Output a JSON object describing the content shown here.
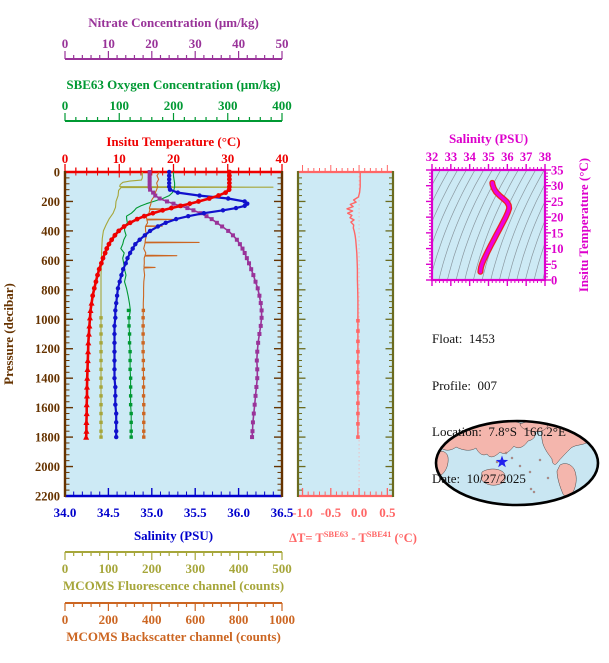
{
  "figure": {
    "plot_bg": "#cdeaf5",
    "info": {
      "lines": [
        "Float:  1453",
        "Profile:  007",
        "Location:  7.8°S  166.2°E",
        "Date:  10/27/2025"
      ]
    },
    "dt_label": {
      "prefix": "ΔT= T",
      "sup1": "SBE63",
      "mid": " - T",
      "sup2": "SBE41",
      "suffix": " (°C)"
    },
    "map": {
      "ocean": "#c9e6f2",
      "land": "#f4b6ad",
      "coast": "#222222",
      "outline": "#000000",
      "marker": "star",
      "marker_color": "#2222ee"
    }
  },
  "chart_data": [
    {
      "type": "line",
      "id": "profiles",
      "y_axis": {
        "title": "Pressure (decibar)",
        "color": "#663300",
        "min": 0,
        "max": 2200,
        "ticks": [
          0,
          200,
          400,
          600,
          800,
          1000,
          1200,
          1400,
          1600,
          1800,
          2000,
          2200
        ],
        "minor": 40
      },
      "axes": {
        "nitrate": {
          "title": "Nitrate Concentration (μm/kg)",
          "color": "#993399",
          "min": 0,
          "max": 50,
          "ticks": [
            0,
            10,
            20,
            30,
            40,
            50
          ],
          "minor": 2,
          "decimals": 0
        },
        "oxygen": {
          "title": "SBE63 Oxygen Concentration (μm/kg)",
          "color": "#009933",
          "min": 0,
          "max": 400,
          "ticks": [
            0,
            100,
            200,
            300,
            400
          ],
          "minor": 20,
          "decimals": 0
        },
        "temperature": {
          "title": "Insitu Temperature (°C)",
          "color": "#ee0000",
          "min": 0,
          "max": 40,
          "ticks": [
            0,
            10,
            20,
            30,
            40
          ],
          "minor": 2,
          "decimals": 0
        },
        "salinity": {
          "title": "Salinity (PSU)",
          "color": "#0000cc",
          "min": 34.0,
          "max": 36.5,
          "ticks": [
            34.0,
            34.5,
            35.0,
            35.5,
            36.0,
            36.5
          ],
          "minor": 0.1,
          "decimals": 1
        },
        "fluorescence": {
          "title": "MCOMS Fluorescence channel (counts)",
          "color": "#a6a63a",
          "min": 0,
          "max": 500,
          "ticks": [
            0,
            100,
            200,
            300,
            400,
            500
          ],
          "minor": 20,
          "decimals": 0
        },
        "backscatter": {
          "title": "MCOMS Backscatter channel (counts)",
          "color": "#cc6622",
          "min": 0,
          "max": 1000,
          "ticks": [
            0,
            200,
            400,
            600,
            800,
            1000
          ],
          "minor": 40,
          "decimals": 0
        }
      },
      "pressures": [
        0,
        25,
        50,
        75,
        100,
        120,
        140,
        160,
        180,
        200,
        215,
        230,
        245,
        260,
        280,
        300,
        320,
        345,
        370,
        400,
        430,
        460,
        490,
        520,
        550,
        585,
        620,
        660,
        700,
        745,
        790,
        840,
        890,
        940,
        990,
        1045,
        1100,
        1160,
        1220,
        1280,
        1340,
        1400,
        1460,
        1520,
        1580,
        1640,
        1700,
        1760,
        1800
      ],
      "series": [
        {
          "name": "fluorescence",
          "axis": "fluorescence",
          "color": "#a6a63a",
          "width": 1.1,
          "marker": "square",
          "marker_from": 940,
          "marker_size": 3.4,
          "pressure": [
            0,
            40,
            55,
            62,
            70,
            85,
            97,
            100,
            103,
            106,
            125,
            160,
            200,
            240,
            280,
            320,
            360,
            400,
            450,
            500,
            560,
            620,
            700,
            790,
            890,
            990,
            1045,
            1100,
            1160,
            1220,
            1280,
            1340,
            1400,
            1460,
            1520,
            1580,
            1640,
            1700,
            1760,
            1800
          ],
          "values": [
            178,
            178,
            176,
            150,
            133,
            128,
            127,
            127,
            478,
            127,
            123,
            121,
            119,
            116,
            110,
            102,
            94,
            89,
            86,
            85,
            84,
            84,
            83,
            83,
            83,
            83,
            83,
            83,
            83,
            83,
            83,
            83,
            83,
            83,
            83,
            83,
            83,
            83,
            83,
            83
          ],
          "jitter": {
            "amp": 2,
            "from": 60,
            "to": 420
          }
        },
        {
          "name": "oxygen",
          "axis": "oxygen",
          "color": "#009933",
          "width": 1.1,
          "marker": "square",
          "marker_from": 940,
          "marker_size": 3.4,
          "values": [
            200,
            200,
            201,
            202,
            202,
            201,
            198,
            192,
            180,
            163,
            150,
            140,
            132,
            126,
            121,
            117,
            115,
            113,
            112,
            111,
            110,
            108,
            107,
            106,
            106,
            107,
            108,
            110,
            111,
            113,
            114,
            115,
            116,
            117,
            118,
            118,
            119,
            119,
            120,
            120,
            120,
            121,
            121,
            121,
            121,
            122,
            122,
            122,
            122
          ],
          "jitter": {
            "amp": 4,
            "from": 230,
            "to": 950
          }
        },
        {
          "name": "backscatter",
          "axis": "backscatter",
          "color": "#cc6622",
          "width": 1.1,
          "marker": "square",
          "marker_from": 940,
          "marker_size": 3.4,
          "values": [
            432,
            426,
            430,
            423,
            428,
            420,
            415,
            411,
            407,
            402,
            397,
            393,
            390,
            387,
            384,
            381,
            379,
            377,
            375,
            373,
            371,
            370,
            369,
            368,
            367,
            366,
            365,
            364,
            364,
            363,
            362,
            362,
            361,
            361,
            360,
            360,
            360,
            360,
            360,
            361,
            361,
            362,
            362,
            362,
            363,
            363,
            363,
            363,
            363
          ],
          "jitter": {
            "amp": 7,
            "from": 0,
            "to": 700
          },
          "spikes": [
            [
              252,
              468
            ],
            [
              322,
              502
            ],
            [
              368,
              448
            ],
            [
              478,
              618
            ],
            [
              568,
              515
            ],
            [
              648,
              415
            ]
          ]
        },
        {
          "name": "nitrate",
          "axis": "nitrate",
          "color": "#993399",
          "width": 1.6,
          "marker": "square",
          "marker_all": true,
          "marker_size": 4.0,
          "values": [
            19.5,
            19.5,
            19.5,
            19.5,
            19.5,
            19.6,
            20.3,
            20.8,
            21.8,
            23.5,
            25.0,
            26.6,
            28.2,
            29.6,
            31.2,
            32.6,
            33.8,
            35.0,
            36.2,
            37.6,
            38.7,
            39.6,
            40.3,
            40.9,
            41.4,
            41.9,
            42.4,
            42.9,
            43.4,
            43.9,
            44.4,
            44.8,
            45.1,
            45.3,
            45.3,
            45.1,
            44.8,
            44.5,
            44.3,
            44.2,
            44.3,
            44.3,
            44.1,
            43.9,
            43.7,
            43.5,
            43.3,
            43.2,
            43.1
          ]
        },
        {
          "name": "salinity",
          "axis": "salinity",
          "color": "#1111cc",
          "width": 2.2,
          "marker": "circle",
          "marker_all": true,
          "marker_size": 2.2,
          "values": [
            35.2,
            35.2,
            35.2,
            35.2,
            35.2,
            35.21,
            35.3,
            35.55,
            35.88,
            36.07,
            36.1,
            36.07,
            35.97,
            35.82,
            35.6,
            35.42,
            35.28,
            35.16,
            35.07,
            34.98,
            34.92,
            34.86,
            34.81,
            34.78,
            34.75,
            34.72,
            34.7,
            34.67,
            34.65,
            34.63,
            34.61,
            34.6,
            34.59,
            34.58,
            34.58,
            34.57,
            34.57,
            34.57,
            34.57,
            34.57,
            34.57,
            34.57,
            34.58,
            34.58,
            34.58,
            34.59,
            34.59,
            34.59,
            34.59
          ]
        },
        {
          "name": "temperature",
          "axis": "temperature",
          "color": "#ee0000",
          "width": 2.6,
          "marker": "circle",
          "marker_all": true,
          "marker_size": 2.4,
          "deep_marker": "triangle",
          "deep_from": 860,
          "values": [
            30.3,
            30.3,
            30.3,
            30.3,
            30.3,
            30.25,
            29.6,
            28.3,
            26.6,
            24.6,
            23.0,
            21.3,
            19.6,
            18.0,
            16.2,
            14.6,
            13.3,
            12.0,
            10.9,
            9.9,
            9.2,
            8.6,
            8.1,
            7.7,
            7.4,
            7.0,
            6.7,
            6.3,
            6.0,
            5.7,
            5.4,
            5.1,
            4.9,
            4.7,
            4.6,
            4.5,
            4.4,
            4.3,
            4.25,
            4.2,
            4.15,
            4.1,
            4.05,
            4.05,
            4.0,
            4.0,
            3.95,
            3.95,
            3.9
          ]
        }
      ]
    },
    {
      "type": "line",
      "id": "delta_t",
      "x_axis": {
        "color": "#ff6666",
        "min": -1.08,
        "max": 0.6,
        "ticks": [
          -1.0,
          -0.5,
          0.0,
          0.5
        ],
        "minor": 0.1,
        "decimals": 1
      },
      "side_color": "#6b6b1f",
      "series": [
        {
          "name": "delta_t",
          "color": "#ff6666",
          "width": 1.4,
          "marker": "square",
          "marker_from": 1000,
          "marker_size": 3.6,
          "pressure": [
            0,
            50,
            100,
            140,
            170,
            190,
            205,
            220,
            235,
            250,
            265,
            280,
            295,
            310,
            325,
            340,
            360,
            380,
            400,
            430,
            460,
            500,
            550,
            600,
            660,
            730,
            800,
            870,
            940,
            1010,
            1080,
            1150,
            1220,
            1290,
            1360,
            1430,
            1500,
            1570,
            1640,
            1710,
            1800
          ],
          "values": [
            0.02,
            0.02,
            0.02,
            0.01,
            -0.02,
            -0.1,
            -0.06,
            -0.16,
            -0.09,
            -0.19,
            -0.11,
            -0.21,
            -0.13,
            -0.17,
            -0.11,
            -0.15,
            -0.1,
            -0.12,
            -0.08,
            -0.07,
            -0.06,
            -0.05,
            -0.04,
            -0.035,
            -0.03,
            -0.03,
            -0.025,
            -0.02,
            -0.02,
            -0.02,
            -0.02,
            -0.02,
            -0.02,
            -0.02,
            -0.02,
            -0.02,
            -0.02,
            -0.02,
            -0.02,
            -0.02,
            -0.02
          ],
          "jitter": {
            "amp": 0.025,
            "from": 160,
            "to": 420
          }
        }
      ]
    },
    {
      "type": "line",
      "id": "ts_diagram",
      "x_axis": {
        "title": "Salinity (PSU)",
        "color": "#dd00cc",
        "min": 32,
        "max": 38,
        "ticks": [
          32,
          33,
          34,
          35,
          36,
          37,
          38
        ],
        "minor": 0.2,
        "decimals": 0
      },
      "y_axis": {
        "title": "Insitu Temperature (°C)",
        "color": "#dd00cc",
        "min": 0,
        "max": 35,
        "ticks": [
          0,
          5,
          10,
          15,
          20,
          25,
          30,
          35
        ],
        "minor": 1,
        "decimals": 0
      },
      "curve": {
        "color": "#ee00dd",
        "edge_color": "#ee2222",
        "s": [
          35.2,
          35.22,
          35.28,
          35.4,
          35.6,
          35.8,
          35.98,
          36.08,
          36.1,
          36.02,
          35.9,
          35.76,
          35.6,
          35.44,
          35.28,
          35.12,
          34.97,
          34.84,
          34.73,
          34.65,
          34.6,
          34.58,
          34.57
        ],
        "t": [
          30.9,
          30.3,
          29.2,
          28.0,
          26.8,
          25.8,
          24.8,
          23.8,
          22.8,
          21.4,
          19.8,
          18.2,
          16.4,
          14.6,
          12.8,
          11.0,
          9.2,
          7.6,
          6.2,
          5.0,
          4.0,
          3.2,
          2.6
        ]
      },
      "isopycnals": {
        "color": "#8a98a0",
        "count": 19,
        "start_psu": 29.6,
        "spacing_psu": 0.46
      }
    }
  ]
}
